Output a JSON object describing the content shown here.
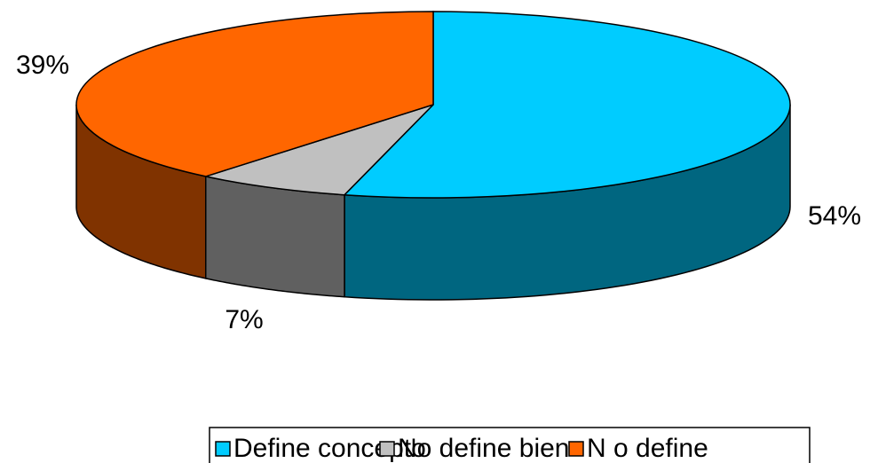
{
  "chart_data": {
    "type": "pie3d",
    "categories": [
      "Define concepto",
      "No define bien",
      "N o define"
    ],
    "values": [
      54,
      7,
      39
    ],
    "value_labels": [
      "54%",
      "7%",
      "39%"
    ],
    "colors": [
      "#00CCFF",
      "#C0C0C0",
      "#FF6600"
    ],
    "legend": "bottom"
  }
}
